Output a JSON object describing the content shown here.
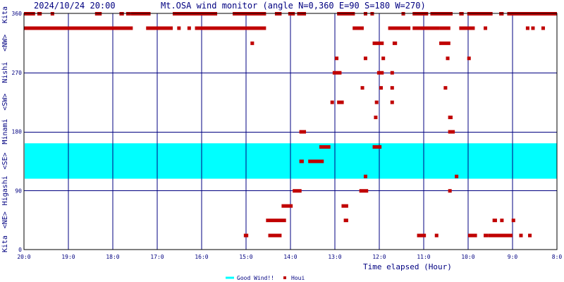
{
  "chart_data": {
    "type": "scatter",
    "title": "Mt.OSA wind monitor (angle N=0,360 E=90 S=180 W=270)",
    "timestamp": "2024/10/24 20:00",
    "xlabel": "Time elapsed (Hour)",
    "ylabel": "",
    "x_ticks": [
      "20:0",
      "19:0",
      "18:0",
      "17:0",
      "16:0",
      "15:0",
      "14:0",
      "13:0",
      "12:0",
      "11:0",
      "10:0",
      "9:0",
      "8:0"
    ],
    "y_ticks": [
      "0",
      "90",
      "180",
      "270",
      "360"
    ],
    "y_range": [
      0,
      360
    ],
    "x_range_hours_ago": [
      0,
      12
    ],
    "direction_labels": [
      "Kita",
      "<NE>",
      "Higashi",
      "<SE>",
      "Minami",
      "<SW>",
      "Nishi",
      "<NW>",
      "Kita"
    ],
    "good_wind_band": {
      "name": "Good Wind!!",
      "y_from": 108,
      "y_to": 162,
      "color": "#00ffff"
    },
    "legend": [
      {
        "name": "Good Wind!!",
        "color": "#00ffff",
        "symbol": "line"
      },
      {
        "name": "Houi",
        "color": "#c00000",
        "symbol": "square"
      }
    ],
    "grid": true,
    "colors": {
      "frame": "#000000",
      "grid": "#000080",
      "points": "#c00000",
      "band": "#00ffff"
    },
    "series": [
      {
        "name": "Houi",
        "segments": [
          [
            0.0,
            0.25,
            360
          ],
          [
            0.3,
            0.4,
            360
          ],
          [
            0.6,
            0.68,
            360
          ],
          [
            1.6,
            1.75,
            360
          ],
          [
            2.15,
            2.25,
            360
          ],
          [
            2.3,
            2.4,
            360
          ],
          [
            2.4,
            2.85,
            360
          ],
          [
            3.35,
            4.35,
            360
          ],
          [
            4.7,
            5.45,
            360
          ],
          [
            5.65,
            5.8,
            360
          ],
          [
            5.95,
            6.1,
            360
          ],
          [
            6.15,
            6.35,
            360
          ],
          [
            7.05,
            7.45,
            360
          ],
          [
            7.65,
            7.72,
            360
          ],
          [
            7.8,
            7.88,
            360
          ],
          [
            8.5,
            8.58,
            360
          ],
          [
            8.75,
            9.1,
            360
          ],
          [
            9.15,
            9.65,
            360
          ],
          [
            9.8,
            9.9,
            360
          ],
          [
            9.98,
            10.55,
            360
          ],
          [
            10.7,
            10.8,
            360
          ],
          [
            10.88,
            12.0,
            360
          ],
          [
            0.0,
            2.45,
            338
          ],
          [
            2.75,
            3.35,
            338
          ],
          [
            3.45,
            3.52,
            338
          ],
          [
            3.68,
            3.75,
            338
          ],
          [
            3.85,
            5.45,
            338
          ],
          [
            7.4,
            7.65,
            338
          ],
          [
            8.2,
            8.7,
            338
          ],
          [
            8.75,
            9.35,
            338
          ],
          [
            9.35,
            9.6,
            338
          ],
          [
            9.8,
            10.15,
            338
          ],
          [
            10.35,
            10.42,
            338
          ],
          [
            11.3,
            11.38,
            338
          ],
          [
            11.42,
            11.5,
            338
          ],
          [
            11.65,
            11.72,
            338
          ],
          [
            5.1,
            5.18,
            315
          ],
          [
            7.85,
            8.1,
            315
          ],
          [
            8.3,
            8.4,
            315
          ],
          [
            9.35,
            9.6,
            315
          ],
          [
            7.65,
            7.72,
            292
          ],
          [
            7.0,
            7.08,
            292
          ],
          [
            8.05,
            8.13,
            292
          ],
          [
            9.5,
            9.58,
            292
          ],
          [
            9.98,
            10.05,
            292
          ],
          [
            6.95,
            7.15,
            270
          ],
          [
            7.95,
            8.1,
            270
          ],
          [
            8.25,
            8.33,
            270
          ],
          [
            7.58,
            7.65,
            247
          ],
          [
            8.0,
            8.08,
            247
          ],
          [
            8.25,
            8.33,
            247
          ],
          [
            9.45,
            9.53,
            247
          ],
          [
            6.9,
            6.97,
            225
          ],
          [
            7.05,
            7.2,
            225
          ],
          [
            7.9,
            7.97,
            225
          ],
          [
            8.25,
            8.33,
            225
          ],
          [
            7.88,
            7.95,
            202
          ],
          [
            9.55,
            9.65,
            202
          ],
          [
            6.2,
            6.35,
            180
          ],
          [
            9.55,
            9.7,
            180
          ],
          [
            6.65,
            6.9,
            157
          ],
          [
            7.85,
            8.05,
            157
          ],
          [
            6.2,
            6.3,
            135
          ],
          [
            6.4,
            6.75,
            135
          ],
          [
            7.65,
            7.73,
            112
          ],
          [
            9.7,
            9.78,
            112
          ],
          [
            6.05,
            6.25,
            90
          ],
          [
            7.55,
            7.75,
            90
          ],
          [
            9.55,
            9.63,
            90
          ],
          [
            5.8,
            6.05,
            67
          ],
          [
            7.15,
            7.3,
            67
          ],
          [
            7.2,
            7.3,
            45
          ],
          [
            5.45,
            5.9,
            45
          ],
          [
            10.55,
            10.65,
            45
          ],
          [
            10.72,
            10.8,
            45
          ],
          [
            10.98,
            11.06,
            45
          ],
          [
            4.95,
            5.05,
            22
          ],
          [
            5.5,
            5.8,
            22
          ],
          [
            8.85,
            9.05,
            22
          ],
          [
            9.25,
            9.33,
            22
          ],
          [
            10.0,
            10.2,
            22
          ],
          [
            10.35,
            10.45,
            22
          ],
          [
            10.45,
            11.0,
            22
          ],
          [
            11.15,
            11.23,
            22
          ],
          [
            11.35,
            11.43,
            22
          ]
        ]
      }
    ]
  }
}
